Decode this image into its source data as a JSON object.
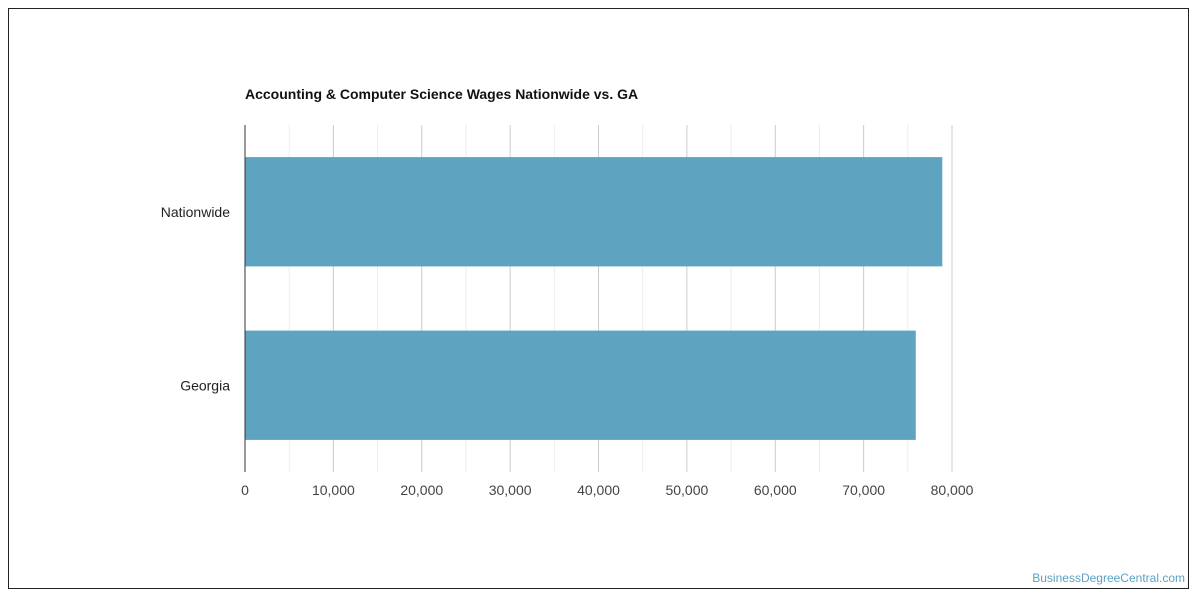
{
  "chart_data": {
    "type": "bar",
    "orientation": "horizontal",
    "title": "Accounting & Computer Science Wages Nationwide vs. GA",
    "categories": [
      "Nationwide",
      "Georgia"
    ],
    "values": [
      78900,
      75900
    ],
    "xlim": [
      0,
      80000
    ],
    "x_ticks": [
      "0",
      "10,000",
      "20,000",
      "30,000",
      "40,000",
      "50,000",
      "60,000",
      "70,000",
      "80,000"
    ],
    "x_tick_values": [
      0,
      10000,
      20000,
      30000,
      40000,
      50000,
      60000,
      70000,
      80000
    ],
    "grid": true,
    "bar_color": "#5ea3bf"
  },
  "watermark": "BusinessDegreeCentral.com"
}
